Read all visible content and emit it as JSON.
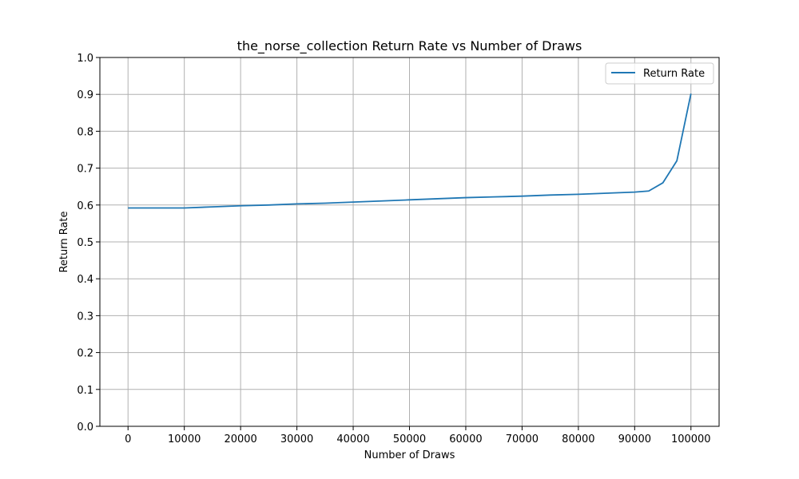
{
  "chart_data": {
    "type": "line",
    "title": "the_norse_collection Return Rate vs Number of Draws",
    "xlabel": "Number of Draws",
    "ylabel": "Return Rate",
    "xlim": [
      -5000,
      105000
    ],
    "ylim": [
      0.0,
      1.0
    ],
    "xticks": [
      0,
      10000,
      20000,
      30000,
      40000,
      50000,
      60000,
      70000,
      80000,
      90000,
      100000
    ],
    "yticks": [
      0.0,
      0.1,
      0.2,
      0.3,
      0.4,
      0.5,
      0.6,
      0.7,
      0.8,
      0.9,
      1.0
    ],
    "xtick_labels": [
      "0",
      "10000",
      "20000",
      "30000",
      "40000",
      "50000",
      "60000",
      "70000",
      "80000",
      "90000",
      "100000"
    ],
    "ytick_labels": [
      "0.0",
      "0.1",
      "0.2",
      "0.3",
      "0.4",
      "0.5",
      "0.6",
      "0.7",
      "0.8",
      "0.9",
      "1.0"
    ],
    "grid": true,
    "legend_position": "top-right",
    "series": [
      {
        "name": "Return Rate",
        "color": "#1f77b4",
        "x": [
          0,
          5000,
          10000,
          15000,
          20000,
          25000,
          30000,
          35000,
          40000,
          45000,
          50000,
          55000,
          60000,
          65000,
          70000,
          75000,
          80000,
          85000,
          90000,
          92500,
          95000,
          97500,
          100000
        ],
        "y": [
          0.592,
          0.592,
          0.592,
          0.595,
          0.598,
          0.6,
          0.603,
          0.605,
          0.608,
          0.611,
          0.614,
          0.617,
          0.62,
          0.622,
          0.624,
          0.627,
          0.629,
          0.632,
          0.635,
          0.638,
          0.66,
          0.72,
          0.902
        ]
      }
    ]
  }
}
